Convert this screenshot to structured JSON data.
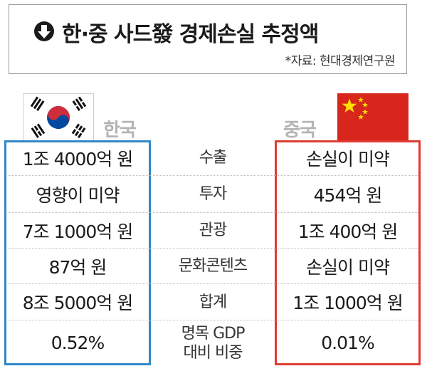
{
  "title": "한·중 사드發 경제손실 추정액",
  "source": "*자료: 현대경제연구원",
  "countries": {
    "left": "한국",
    "right": "중국"
  },
  "rows": [
    {
      "label": "수출",
      "korea": "1조 4000억 원",
      "china": "손실이 미약"
    },
    {
      "label": "투자",
      "korea": "영향이 미약",
      "china": "454억 원"
    },
    {
      "label": "관광",
      "korea": "7조 1000억 원",
      "china": "1조 400억 원"
    },
    {
      "label": "문화콘텐츠",
      "korea": "87억 원",
      "china": "손실이 미약"
    },
    {
      "label": "합계",
      "korea": "8조 5000억 원",
      "china": "1조 1000억 원"
    },
    {
      "label": "명목 GDP\n대비 비중",
      "korea": "0.52%",
      "china": "0.01%"
    }
  ],
  "colors": {
    "korea_frame": "#2f88c9",
    "china_frame": "#df3b31",
    "china_flag": "#d8261c",
    "china_star": "#ffde00",
    "korea_red": "#cd2e3a",
    "korea_blue": "#0047a0"
  },
  "icons": {
    "title": "down-arrow-circle-icon"
  }
}
